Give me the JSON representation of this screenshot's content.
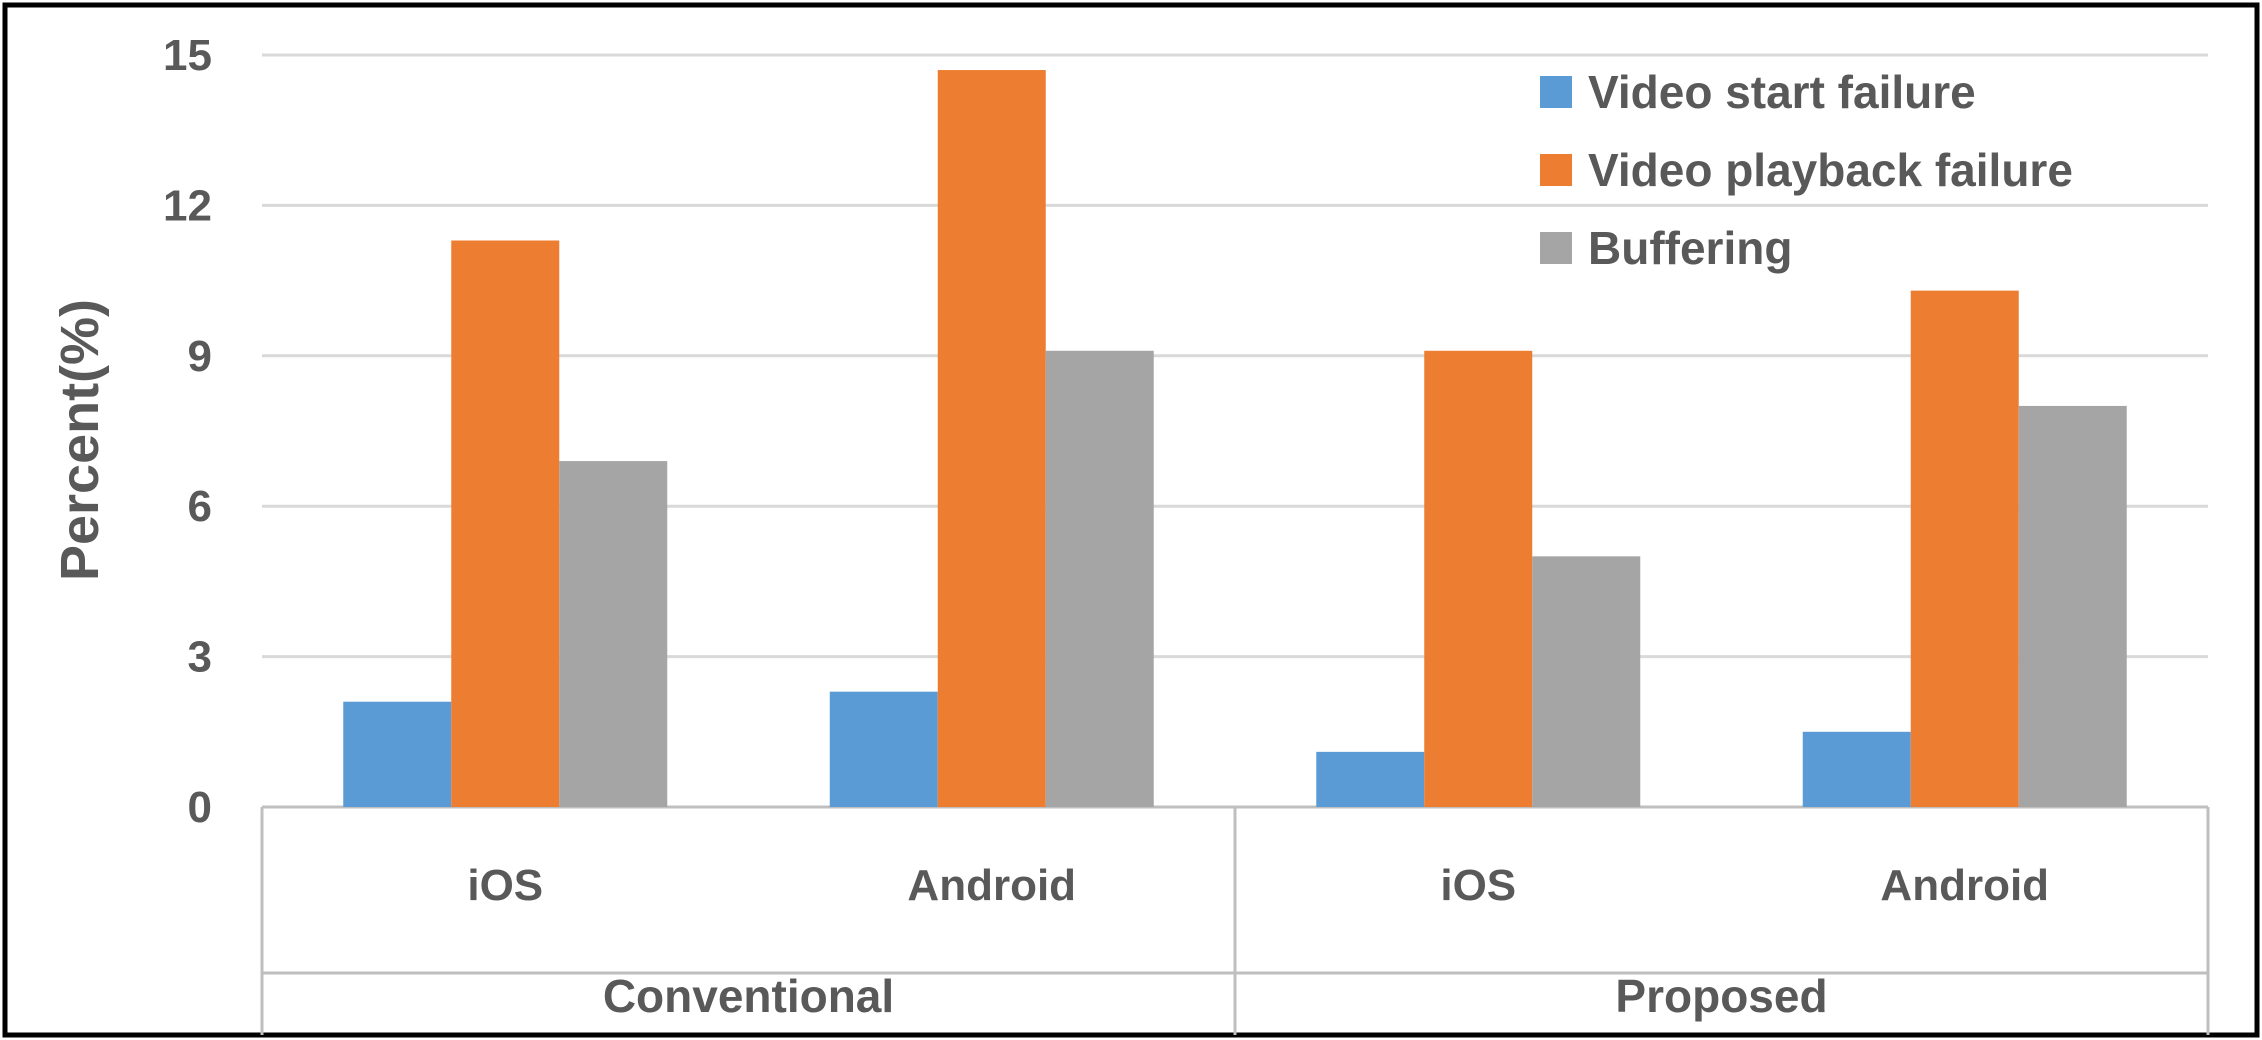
{
  "chart_data": {
    "type": "bar",
    "ylabel": "Percent(%)",
    "ylim": [
      0,
      15
    ],
    "yticks": [
      "0",
      "3",
      "6",
      "9",
      "12",
      "15"
    ],
    "grid": true,
    "legend_position": "top-right",
    "groups": [
      {
        "label": "Conventional",
        "categories": [
          "iOS",
          "Android"
        ]
      },
      {
        "label": "Proposed",
        "categories": [
          "iOS",
          "Android"
        ]
      }
    ],
    "categories": [
      "iOS",
      "Android",
      "iOS",
      "Android"
    ],
    "series": [
      {
        "name": "Video start failure",
        "color": "#5b9bd5",
        "values": [
          2.1,
          2.3,
          1.1,
          1.5
        ]
      },
      {
        "name": "Video playback failure",
        "color": "#ed7d31",
        "values": [
          11.3,
          14.7,
          9.1,
          10.3
        ]
      },
      {
        "name": "Buffering",
        "color": "#a5a5a5",
        "values": [
          6.9,
          9.1,
          5.0,
          8.0
        ]
      }
    ]
  }
}
